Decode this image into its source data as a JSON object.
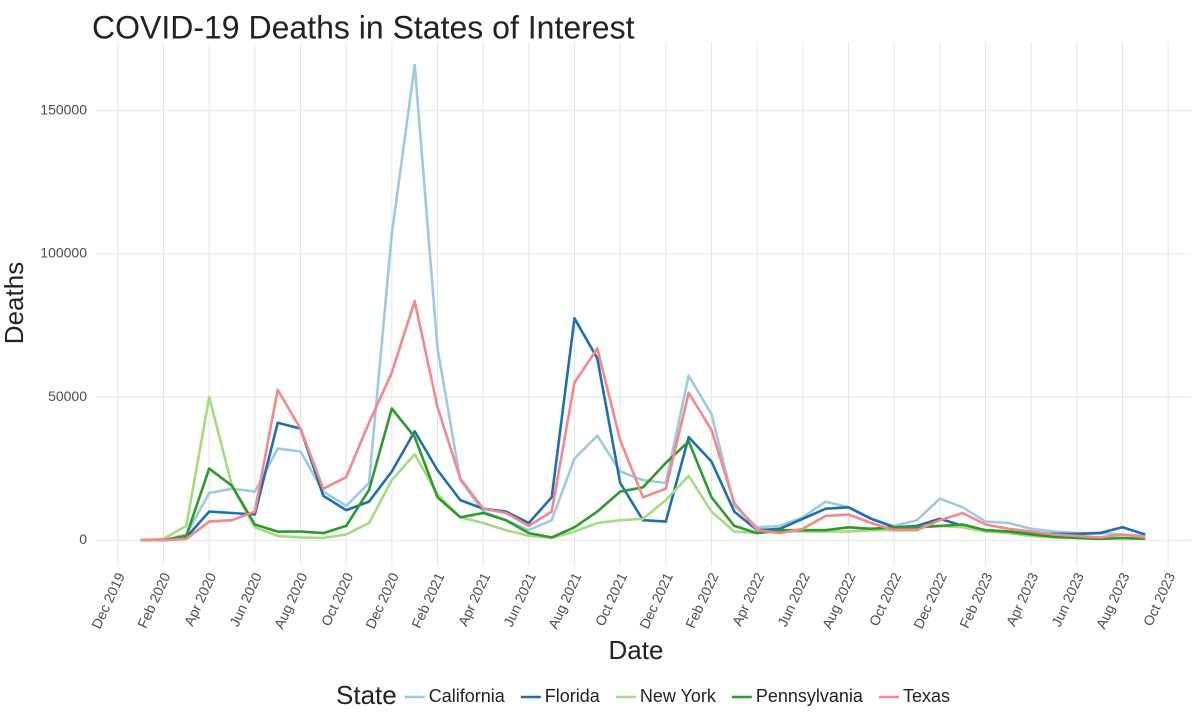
{
  "chart_data": {
    "type": "line",
    "title": "COVID-19 Deaths in States of Interest",
    "x_label": "Date",
    "y_label": "Deaths",
    "legend_title": "State",
    "legend_position": "bottom",
    "grid": true,
    "x": [
      "2020-01",
      "2020-02",
      "2020-03",
      "2020-04",
      "2020-05",
      "2020-06",
      "2020-07",
      "2020-08",
      "2020-09",
      "2020-10",
      "2020-11",
      "2020-12",
      "2021-01",
      "2021-02",
      "2021-03",
      "2021-04",
      "2021-05",
      "2021-06",
      "2021-07",
      "2021-08",
      "2021-09",
      "2021-10",
      "2021-11",
      "2021-12",
      "2022-01",
      "2022-02",
      "2022-03",
      "2022-04",
      "2022-05",
      "2022-06",
      "2022-07",
      "2022-08",
      "2022-09",
      "2022-10",
      "2022-11",
      "2022-12",
      "2023-01",
      "2023-02",
      "2023-03",
      "2023-04",
      "2023-05",
      "2023-06",
      "2023-07",
      "2023-08",
      "2023-09"
    ],
    "xlim": [
      "2019-11",
      "2023-11"
    ],
    "xticks": [
      {
        "value": "2019-12",
        "label": "Dec 2019"
      },
      {
        "value": "2020-02",
        "label": "Feb 2020"
      },
      {
        "value": "2020-04",
        "label": "Apr 2020"
      },
      {
        "value": "2020-06",
        "label": "Jun 2020"
      },
      {
        "value": "2020-08",
        "label": "Aug 2020"
      },
      {
        "value": "2020-10",
        "label": "Oct 2020"
      },
      {
        "value": "2020-12",
        "label": "Dec 2020"
      },
      {
        "value": "2021-02",
        "label": "Feb 2021"
      },
      {
        "value": "2021-04",
        "label": "Apr 2021"
      },
      {
        "value": "2021-06",
        "label": "Jun 2021"
      },
      {
        "value": "2021-08",
        "label": "Aug 2021"
      },
      {
        "value": "2021-10",
        "label": "Oct 2021"
      },
      {
        "value": "2021-12",
        "label": "Dec 2021"
      },
      {
        "value": "2022-02",
        "label": "Feb 2022"
      },
      {
        "value": "2022-04",
        "label": "Apr 2022"
      },
      {
        "value": "2022-06",
        "label": "Jun 2022"
      },
      {
        "value": "2022-08",
        "label": "Aug 2022"
      },
      {
        "value": "2022-10",
        "label": "Oct 2022"
      },
      {
        "value": "2022-12",
        "label": "Dec 2022"
      },
      {
        "value": "2023-02",
        "label": "Feb 2023"
      },
      {
        "value": "2023-04",
        "label": "Apr 2023"
      },
      {
        "value": "2023-06",
        "label": "Jun 2023"
      },
      {
        "value": "2023-08",
        "label": "Aug 2023"
      },
      {
        "value": "2023-10",
        "label": "Oct 2023"
      }
    ],
    "ylim": [
      -9000,
      174000
    ],
    "yticks": [
      0,
      50000,
      100000,
      150000
    ],
    "series": [
      {
        "name": "California",
        "color": "#9ecae1",
        "values": [
          0,
          0,
          2000,
          16500,
          18000,
          17000,
          32000,
          31000,
          17000,
          12000,
          20000,
          107000,
          166000,
          67000,
          21000,
          10000,
          7000,
          3500,
          7000,
          28500,
          36500,
          24000,
          21000,
          20000,
          57500,
          44000,
          12000,
          4500,
          5000,
          8000,
          13500,
          11500,
          7500,
          5000,
          7000,
          14500,
          11500,
          6500,
          6000,
          4000,
          3000,
          2500,
          2500,
          2000,
          1500
        ]
      },
      {
        "name": "Florida",
        "color": "#1f6eb0",
        "values": [
          0,
          0,
          1000,
          10000,
          9500,
          9000,
          41000,
          39000,
          15500,
          10500,
          13500,
          24000,
          38000,
          24500,
          14000,
          11000,
          10000,
          6000,
          15000,
          77500,
          63500,
          20000,
          7000,
          6500,
          36000,
          27500,
          10000,
          3500,
          4000,
          7500,
          11000,
          11500,
          7500,
          4500,
          5000,
          7500,
          5000,
          3500,
          3000,
          2500,
          2200,
          2200,
          2500,
          4500,
          2000
        ]
      },
      {
        "name": "New York",
        "color": "#a6db80",
        "values": [
          0,
          500,
          5000,
          50000,
          19000,
          4500,
          1500,
          1000,
          800,
          2000,
          6000,
          21000,
          30000,
          16000,
          8000,
          6000,
          3500,
          1500,
          800,
          3000,
          6000,
          7000,
          7500,
          14000,
          22500,
          10000,
          3000,
          2500,
          3000,
          3000,
          3000,
          3000,
          3500,
          3500,
          4500,
          5000,
          4500,
          3000,
          2500,
          1500,
          1000,
          800,
          500,
          600,
          500
        ]
      },
      {
        "name": "Pennsylvania",
        "color": "#2e9a2e",
        "values": [
          0,
          0,
          1500,
          25000,
          19000,
          5500,
          3000,
          3000,
          2500,
          5000,
          17500,
          46000,
          36000,
          15000,
          8000,
          9500,
          7000,
          2500,
          1000,
          4500,
          10000,
          17000,
          18500,
          27000,
          34500,
          15000,
          5000,
          2500,
          3500,
          3500,
          3500,
          4500,
          4000,
          4500,
          4500,
          5000,
          5500,
          3500,
          3000,
          2000,
          1200,
          800,
          500,
          800,
          500
        ]
      },
      {
        "name": "Texas",
        "color": "#f4888a",
        "values": [
          0,
          0,
          500,
          6500,
          7000,
          10000,
          52500,
          39000,
          18000,
          22000,
          41000,
          58500,
          83500,
          46500,
          21500,
          11000,
          9500,
          5000,
          10000,
          55000,
          67000,
          35000,
          15000,
          18000,
          51500,
          38500,
          13000,
          3500,
          2500,
          4000,
          8500,
          9000,
          6000,
          3500,
          3500,
          7000,
          9500,
          5500,
          4000,
          3000,
          2000,
          1500,
          1000,
          2000,
          1000
        ]
      }
    ]
  }
}
